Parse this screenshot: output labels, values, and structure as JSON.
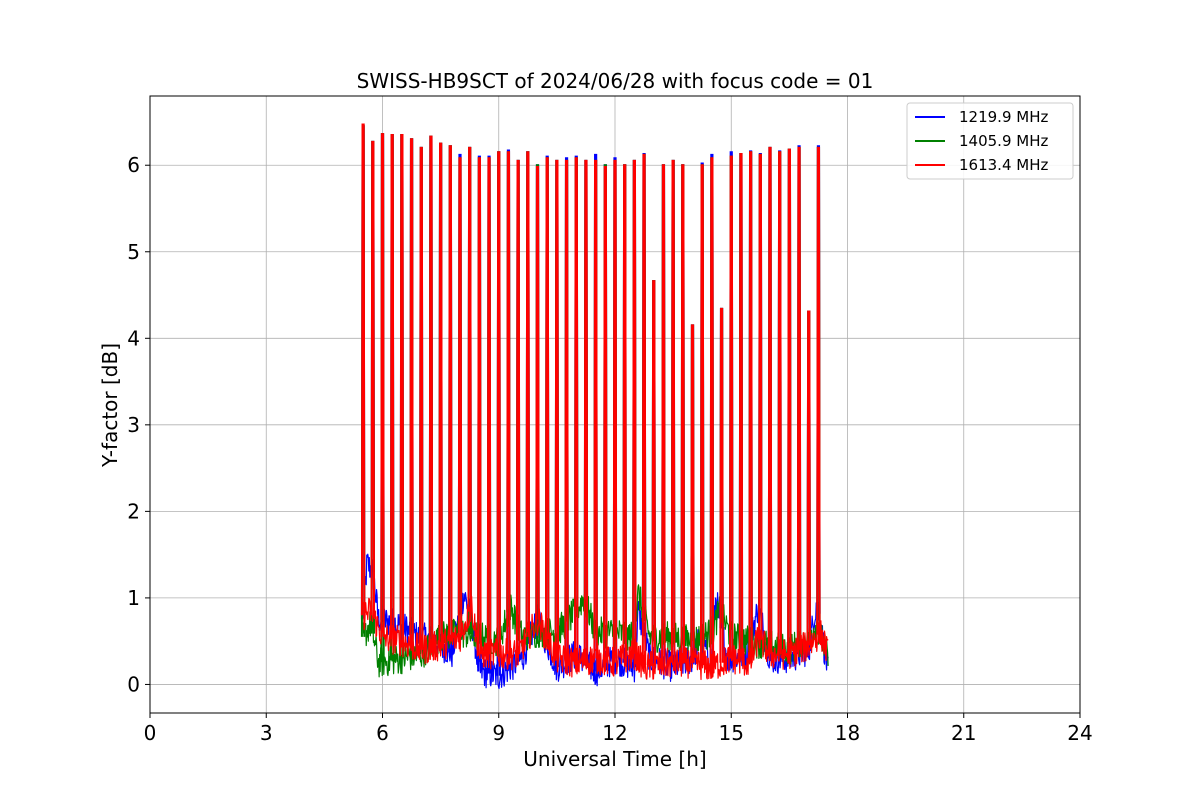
{
  "chart_data": {
    "type": "line",
    "title": "SWISS-HB9SCT of 2024/06/28 with focus code = 01",
    "xlabel": "Universal Time [h]",
    "ylabel": "Y-factor [dB]",
    "xlim": [
      0,
      24
    ],
    "ylim": [
      -0.33,
      6.8
    ],
    "xticks": [
      0,
      3,
      6,
      9,
      12,
      15,
      18,
      21,
      24
    ],
    "yticks": [
      0,
      1,
      2,
      3,
      4,
      5,
      6
    ],
    "grid": true,
    "legend_position": "top-right",
    "series": [
      {
        "name": "1219.9 MHz",
        "color": "#0000ff",
        "baseline": [
          [
            5.5,
            0.75
          ],
          [
            5.6,
            1.4
          ],
          [
            5.75,
            1.3
          ],
          [
            5.9,
            0.75
          ],
          [
            6.4,
            0.7
          ],
          [
            6.9,
            0.55
          ],
          [
            7.4,
            0.5
          ],
          [
            7.8,
            0.35
          ],
          [
            8.1,
            1.05
          ],
          [
            8.3,
            0.75
          ],
          [
            8.5,
            0.15
          ],
          [
            9.0,
            0.1
          ],
          [
            9.3,
            0.2
          ],
          [
            9.6,
            0.3
          ],
          [
            10.0,
            0.75
          ],
          [
            10.5,
            0.2
          ],
          [
            11.0,
            0.35
          ],
          [
            11.5,
            0.15
          ],
          [
            12.0,
            0.3
          ],
          [
            12.5,
            0.2
          ],
          [
            12.6,
            0.85
          ],
          [
            12.9,
            0.3
          ],
          [
            13.5,
            0.2
          ],
          [
            14.0,
            0.3
          ],
          [
            14.2,
            0.55
          ],
          [
            14.5,
            0.25
          ],
          [
            14.6,
            1.0
          ],
          [
            14.9,
            0.3
          ],
          [
            15.4,
            0.35
          ],
          [
            15.7,
            0.9
          ],
          [
            16.0,
            0.3
          ],
          [
            16.5,
            0.3
          ],
          [
            17.0,
            0.4
          ],
          [
            17.2,
            0.95
          ],
          [
            17.5,
            0.15
          ]
        ],
        "peaks": [
          [
            5.5,
            6.45
          ],
          [
            5.75,
            6.27
          ],
          [
            6.0,
            6.36
          ],
          [
            6.25,
            6.35
          ],
          [
            6.5,
            6.35
          ],
          [
            6.75,
            6.3
          ],
          [
            7.0,
            6.2
          ],
          [
            7.25,
            6.33
          ],
          [
            7.5,
            6.25
          ],
          [
            7.75,
            6.22
          ],
          [
            8.0,
            6.12
          ],
          [
            8.25,
            6.2
          ],
          [
            8.5,
            6.1
          ],
          [
            8.75,
            6.1
          ],
          [
            9.0,
            6.15
          ],
          [
            9.25,
            6.17
          ],
          [
            9.5,
            6.05
          ],
          [
            9.75,
            6.15
          ],
          [
            10.0,
            6.0
          ],
          [
            10.25,
            6.1
          ],
          [
            10.5,
            6.05
          ],
          [
            10.75,
            6.08
          ],
          [
            11.0,
            6.1
          ],
          [
            11.25,
            6.05
          ],
          [
            11.5,
            6.12
          ],
          [
            11.75,
            6.0
          ],
          [
            12.0,
            6.08
          ],
          [
            12.25,
            6.0
          ],
          [
            12.5,
            6.05
          ],
          [
            12.75,
            6.13
          ],
          [
            13.0,
            4.66
          ],
          [
            13.25,
            6.0
          ],
          [
            13.5,
            6.05
          ],
          [
            13.75,
            6.0
          ],
          [
            14.0,
            4.15
          ],
          [
            14.25,
            6.02
          ],
          [
            14.5,
            6.12
          ],
          [
            14.75,
            4.34
          ],
          [
            15.0,
            6.15
          ],
          [
            15.25,
            6.13
          ],
          [
            15.5,
            6.16
          ],
          [
            15.75,
            6.13
          ],
          [
            16.0,
            6.2
          ],
          [
            16.25,
            6.16
          ],
          [
            16.5,
            6.18
          ],
          [
            16.75,
            6.22
          ],
          [
            17.0,
            4.31
          ],
          [
            17.25,
            6.22
          ]
        ]
      },
      {
        "name": "1405.9 MHz",
        "color": "#008000",
        "baseline": [
          [
            5.5,
            0.55
          ],
          [
            5.7,
            0.7
          ],
          [
            5.9,
            0.25
          ],
          [
            6.5,
            0.3
          ],
          [
            7.0,
            0.35
          ],
          [
            7.5,
            0.55
          ],
          [
            8.0,
            0.6
          ],
          [
            8.5,
            0.55
          ],
          [
            9.0,
            0.5
          ],
          [
            9.3,
            0.9
          ],
          [
            9.6,
            0.55
          ],
          [
            10.0,
            0.6
          ],
          [
            10.5,
            0.6
          ],
          [
            11.0,
            0.85
          ],
          [
            11.2,
            1.0
          ],
          [
            11.5,
            0.6
          ],
          [
            12.0,
            0.6
          ],
          [
            12.5,
            0.55
          ],
          [
            12.6,
            1.05
          ],
          [
            12.9,
            0.55
          ],
          [
            13.5,
            0.55
          ],
          [
            14.0,
            0.5
          ],
          [
            14.5,
            0.6
          ],
          [
            14.7,
            0.85
          ],
          [
            15.0,
            0.55
          ],
          [
            15.5,
            0.5
          ],
          [
            16.0,
            0.45
          ],
          [
            16.5,
            0.4
          ],
          [
            17.0,
            0.55
          ],
          [
            17.2,
            0.7
          ],
          [
            17.5,
            0.3
          ]
        ],
        "peaks": [
          [
            5.5,
            6.45
          ],
          [
            5.75,
            6.27
          ],
          [
            6.0,
            6.36
          ],
          [
            6.25,
            6.35
          ],
          [
            6.5,
            6.35
          ],
          [
            6.75,
            6.3
          ],
          [
            7.0,
            6.2
          ],
          [
            7.25,
            6.33
          ],
          [
            7.5,
            6.25
          ],
          [
            7.75,
            6.22
          ],
          [
            8.0,
            6.08
          ],
          [
            8.25,
            6.2
          ],
          [
            8.5,
            6.08
          ],
          [
            8.75,
            6.08
          ],
          [
            9.0,
            6.15
          ],
          [
            9.25,
            6.15
          ],
          [
            9.5,
            6.05
          ],
          [
            9.75,
            6.15
          ],
          [
            10.0,
            6.0
          ],
          [
            10.25,
            6.08
          ],
          [
            10.5,
            6.05
          ],
          [
            10.75,
            6.05
          ],
          [
            11.0,
            6.08
          ],
          [
            11.25,
            6.05
          ],
          [
            11.5,
            6.05
          ],
          [
            11.75,
            6.0
          ],
          [
            12.0,
            6.05
          ],
          [
            12.25,
            6.0
          ],
          [
            12.5,
            6.05
          ],
          [
            12.75,
            6.12
          ],
          [
            13.0,
            4.66
          ],
          [
            13.25,
            6.0
          ],
          [
            13.5,
            6.05
          ],
          [
            13.75,
            6.0
          ],
          [
            14.0,
            4.15
          ],
          [
            14.25,
            6.0
          ],
          [
            14.5,
            6.08
          ],
          [
            14.75,
            4.34
          ],
          [
            15.0,
            6.1
          ],
          [
            15.25,
            6.13
          ],
          [
            15.5,
            6.15
          ],
          [
            15.75,
            6.12
          ],
          [
            16.0,
            6.2
          ],
          [
            16.25,
            6.15
          ],
          [
            16.5,
            6.18
          ],
          [
            16.75,
            6.2
          ],
          [
            17.0,
            4.31
          ],
          [
            17.25,
            6.2
          ]
        ]
      },
      {
        "name": "1613.4 MHz",
        "color": "#ff0000",
        "baseline": [
          [
            5.5,
            0.8
          ],
          [
            5.7,
            0.85
          ],
          [
            6.0,
            0.55
          ],
          [
            6.5,
            0.5
          ],
          [
            7.0,
            0.4
          ],
          [
            7.5,
            0.45
          ],
          [
            8.0,
            0.55
          ],
          [
            8.3,
            0.9
          ],
          [
            8.5,
            0.35
          ],
          [
            9.0,
            0.35
          ],
          [
            9.5,
            0.35
          ],
          [
            10.0,
            0.75
          ],
          [
            10.5,
            0.3
          ],
          [
            11.0,
            0.25
          ],
          [
            11.5,
            0.3
          ],
          [
            12.0,
            0.25
          ],
          [
            12.5,
            0.35
          ],
          [
            12.8,
            0.2
          ],
          [
            13.5,
            0.25
          ],
          [
            14.0,
            0.25
          ],
          [
            14.5,
            0.2
          ],
          [
            15.0,
            0.3
          ],
          [
            15.5,
            0.25
          ],
          [
            15.7,
            0.55
          ],
          [
            16.0,
            0.35
          ],
          [
            16.5,
            0.35
          ],
          [
            17.0,
            0.45
          ],
          [
            17.3,
            0.6
          ],
          [
            17.5,
            0.35
          ]
        ],
        "peaks": [
          [
            5.5,
            6.47
          ],
          [
            5.75,
            6.27
          ],
          [
            6.0,
            6.36
          ],
          [
            6.25,
            6.35
          ],
          [
            6.5,
            6.35
          ],
          [
            6.75,
            6.3
          ],
          [
            7.0,
            6.2
          ],
          [
            7.25,
            6.33
          ],
          [
            7.5,
            6.25
          ],
          [
            7.75,
            6.22
          ],
          [
            8.0,
            6.08
          ],
          [
            8.25,
            6.2
          ],
          [
            8.5,
            6.08
          ],
          [
            8.75,
            6.08
          ],
          [
            9.0,
            6.15
          ],
          [
            9.25,
            6.15
          ],
          [
            9.5,
            6.05
          ],
          [
            9.75,
            6.15
          ],
          [
            10.0,
            5.98
          ],
          [
            10.25,
            6.08
          ],
          [
            10.5,
            6.05
          ],
          [
            10.75,
            6.05
          ],
          [
            11.0,
            6.08
          ],
          [
            11.25,
            6.05
          ],
          [
            11.5,
            6.05
          ],
          [
            11.75,
            5.98
          ],
          [
            12.0,
            6.05
          ],
          [
            12.25,
            6.0
          ],
          [
            12.5,
            6.05
          ],
          [
            12.75,
            6.12
          ],
          [
            13.0,
            4.66
          ],
          [
            13.25,
            6.0
          ],
          [
            13.5,
            6.05
          ],
          [
            13.75,
            6.0
          ],
          [
            14.0,
            4.15
          ],
          [
            14.25,
            6.0
          ],
          [
            14.5,
            6.08
          ],
          [
            14.75,
            4.34
          ],
          [
            15.0,
            6.1
          ],
          [
            15.25,
            6.13
          ],
          [
            15.5,
            6.15
          ],
          [
            15.75,
            6.12
          ],
          [
            16.0,
            6.2
          ],
          [
            16.25,
            6.15
          ],
          [
            16.5,
            6.18
          ],
          [
            16.75,
            6.2
          ],
          [
            17.0,
            4.31
          ],
          [
            17.25,
            6.2
          ]
        ]
      }
    ]
  }
}
